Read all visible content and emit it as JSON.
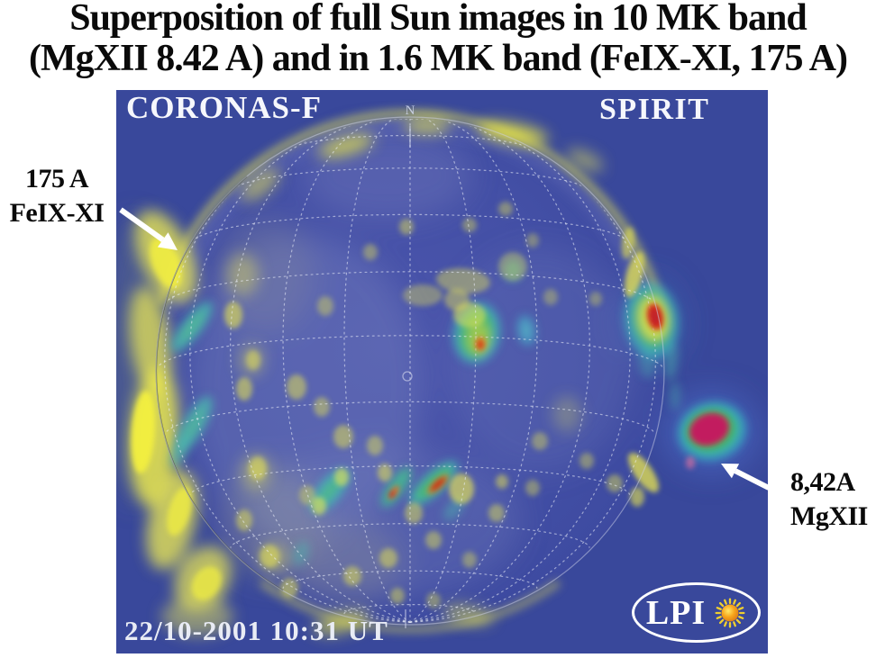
{
  "title": {
    "line1": "Superposition of full Sun images in 10 MK band",
    "line2": "(MgXII 8.42 A) and in 1.6 MK band (FeIX-XI, 175 A)"
  },
  "annotations": {
    "feix": {
      "line1": "175 A",
      "line2": "FeIX-XI"
    },
    "mgxii": {
      "line1": "8,42A",
      "line2": "MgXII"
    }
  },
  "image": {
    "instrument_left": "CORONAS-F",
    "instrument_right": "SPIRIT",
    "timestamp": "22/10-2001 10:31 UT",
    "north_marker": "N",
    "logo": {
      "text": "LPI",
      "icon": "sun-icon"
    },
    "colors": {
      "background": "#39489b",
      "disk": "#4450a6",
      "grid": "#eaeefa",
      "emission_cool_yellow": "#e9e64f",
      "emission_mid_green": "#4fbe62",
      "emission_mid_cyan": "#3fb7bc",
      "emission_hot_red": "#d03018",
      "emission_peak_magenta": "#c21f5e"
    }
  },
  "page": {
    "background": "#ffffff",
    "text_color": "#000000"
  }
}
